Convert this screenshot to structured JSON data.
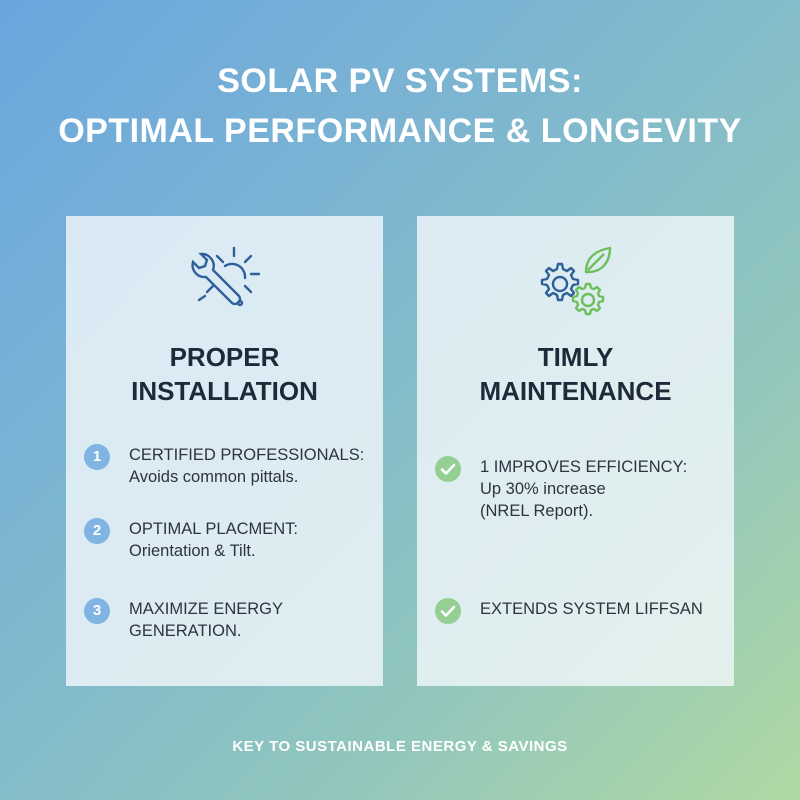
{
  "title": {
    "line1": "SOLAR PV SYSTEMS:",
    "line2": "OPTIMAL PERFORMANCE & LONGEVITY"
  },
  "left_card": {
    "icon": "wrench-sun-icon",
    "heading_line1": "PROPER",
    "heading_line2": "INSTALLATION",
    "items": [
      {
        "badge": "1",
        "line1": "CERTIFIED PROFESSIONALS:",
        "line2": "Avoids common pittals."
      },
      {
        "badge": "2",
        "line1": "OPTIMAL PLACMENT:",
        "line2": "Orientation & Tilt."
      },
      {
        "badge": "3",
        "line1": "MAXIMIZE ENERGY",
        "line2": "GENERATION."
      }
    ]
  },
  "right_card": {
    "icon": "gears-leaf-icon",
    "heading_line1": "TIMLY",
    "heading_line2": "MAINTENANCE",
    "items": [
      {
        "line1": "1 IMPROVES EFFICIENCY:",
        "line2": "Up 30% increase",
        "line3": "(NREL Report)."
      },
      {
        "line1": "EXTENDS SYSTEM LIFFSAN"
      }
    ]
  },
  "footer": "KEY TO SUSTAINABLE ENERGY & SAVINGS",
  "colors": {
    "accent_blue": "#7fb4e3",
    "accent_green": "#96cf93",
    "icon_blue": "#2f5f9a",
    "icon_green": "#6cbf5a"
  }
}
